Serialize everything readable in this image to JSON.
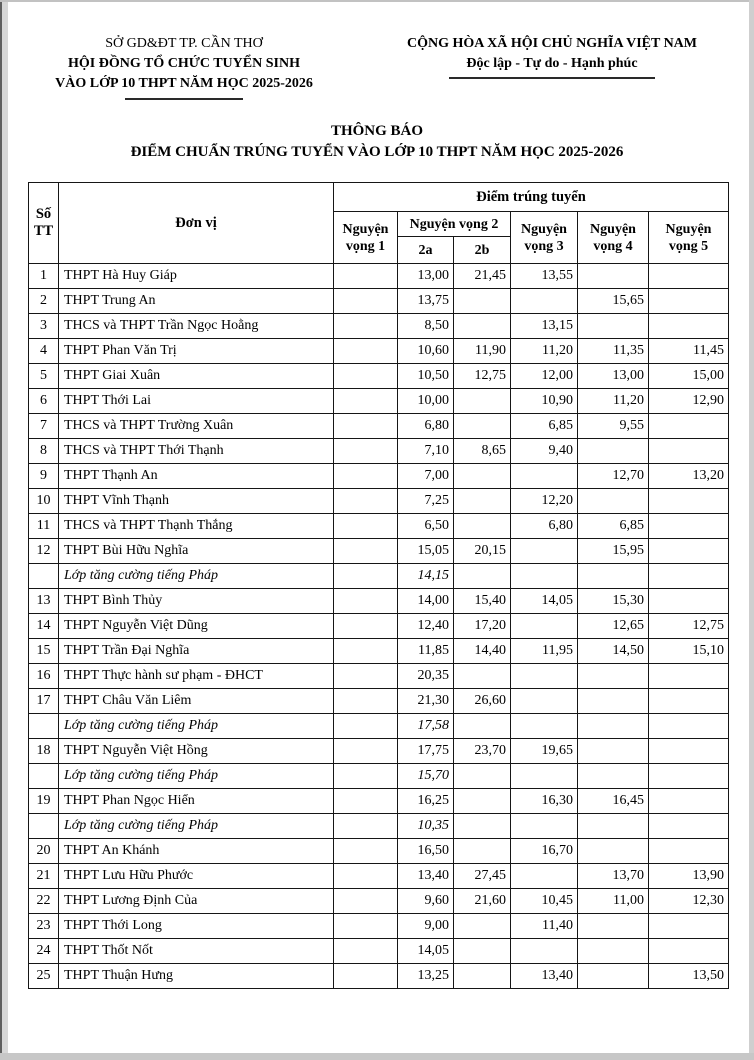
{
  "document": {
    "left_block": {
      "line1": "SỞ GD&ĐT TP. CẦN THƠ",
      "line2": "HỘI ĐỒNG TỔ CHỨC TUYỂN SINH",
      "line3": "VÀO LỚP 10 THPT NĂM HỌC 2025-2026"
    },
    "right_block": {
      "line1": "CỘNG HÒA XÃ HỘI CHỦ NGHĨA VIỆT NAM",
      "line2": "Độc lập - Tự do - Hạnh phúc"
    },
    "title": {
      "line1": "THÔNG BÁO",
      "line2": "ĐIỂM CHUẨN TRÚNG TUYỂN VÀO LỚP 10 THPT NĂM HỌC 2025-2026"
    }
  },
  "table": {
    "headers": {
      "stt": "Số TT",
      "unit": "Đơn vị",
      "group": "Điểm trúng tuyển",
      "nv1": "Nguyện vọng 1",
      "nv2": "Nguyện vọng 2",
      "nv2a": "2a",
      "nv2b": "2b",
      "nv3": "Nguyện vọng 3",
      "nv4": "Nguyện vọng 4",
      "nv5": "Nguyện vọng 5"
    },
    "rows": [
      {
        "stt": "1",
        "unit": "THPT Hà Huy Giáp",
        "nv1": "",
        "nv2a": "13,00",
        "nv2b": "21,45",
        "nv3": "13,55",
        "nv4": "",
        "nv5": "",
        "french": false
      },
      {
        "stt": "2",
        "unit": "THPT Trung An",
        "nv1": "",
        "nv2a": "13,75",
        "nv2b": "",
        "nv3": "",
        "nv4": "15,65",
        "nv5": "",
        "french": false
      },
      {
        "stt": "3",
        "unit": "THCS và THPT Trần Ngọc Hoằng",
        "nv1": "",
        "nv2a": "8,50",
        "nv2b": "",
        "nv3": "13,15",
        "nv4": "",
        "nv5": "",
        "french": false
      },
      {
        "stt": "4",
        "unit": "THPT Phan Văn Trị",
        "nv1": "",
        "nv2a": "10,60",
        "nv2b": "11,90",
        "nv3": "11,20",
        "nv4": "11,35",
        "nv5": "11,45",
        "french": false
      },
      {
        "stt": "5",
        "unit": "THPT Giai Xuân",
        "nv1": "",
        "nv2a": "10,50",
        "nv2b": "12,75",
        "nv3": "12,00",
        "nv4": "13,00",
        "nv5": "15,00",
        "french": false
      },
      {
        "stt": "6",
        "unit": "THPT Thới Lai",
        "nv1": "",
        "nv2a": "10,00",
        "nv2b": "",
        "nv3": "10,90",
        "nv4": "11,20",
        "nv5": "12,90",
        "french": false
      },
      {
        "stt": "7",
        "unit": "THCS và THPT Trường Xuân",
        "nv1": "",
        "nv2a": "6,80",
        "nv2b": "",
        "nv3": "6,85",
        "nv4": "9,55",
        "nv5": "",
        "french": false
      },
      {
        "stt": "8",
        "unit": "THCS và THPT Thới Thạnh",
        "nv1": "",
        "nv2a": "7,10",
        "nv2b": "8,65",
        "nv3": "9,40",
        "nv4": "",
        "nv5": "",
        "french": false
      },
      {
        "stt": "9",
        "unit": "THPT Thạnh An",
        "nv1": "",
        "nv2a": "7,00",
        "nv2b": "",
        "nv3": "",
        "nv4": "12,70",
        "nv5": "13,20",
        "french": false
      },
      {
        "stt": "10",
        "unit": "THPT Vĩnh Thạnh",
        "nv1": "",
        "nv2a": "7,25",
        "nv2b": "",
        "nv3": "12,20",
        "nv4": "",
        "nv5": "",
        "french": false
      },
      {
        "stt": "11",
        "unit": "THCS và THPT Thạnh Thắng",
        "nv1": "",
        "nv2a": "6,50",
        "nv2b": "",
        "nv3": "6,80",
        "nv4": "6,85",
        "nv5": "",
        "french": false
      },
      {
        "stt": "12",
        "unit": "THPT Bùi Hữu Nghĩa",
        "nv1": "",
        "nv2a": "15,05",
        "nv2b": "20,15",
        "nv3": "",
        "nv4": "15,95",
        "nv5": "",
        "french": false
      },
      {
        "stt": "",
        "unit": "Lớp tăng cường tiếng Pháp",
        "nv1": "",
        "nv2a": "14,15",
        "nv2b": "",
        "nv3": "",
        "nv4": "",
        "nv5": "",
        "french": true
      },
      {
        "stt": "13",
        "unit": "THPT Bình Thủy",
        "nv1": "",
        "nv2a": "14,00",
        "nv2b": "15,40",
        "nv3": "14,05",
        "nv4": "15,30",
        "nv5": "",
        "french": false
      },
      {
        "stt": "14",
        "unit": "THPT Nguyễn Việt Dũng",
        "nv1": "",
        "nv2a": "12,40",
        "nv2b": "17,20",
        "nv3": "",
        "nv4": "12,65",
        "nv5": "12,75",
        "french": false
      },
      {
        "stt": "15",
        "unit": "THPT Trần Đại Nghĩa",
        "nv1": "",
        "nv2a": "11,85",
        "nv2b": "14,40",
        "nv3": "11,95",
        "nv4": "14,50",
        "nv5": "15,10",
        "french": false
      },
      {
        "stt": "16",
        "unit": "THPT Thực hành sư phạm - ĐHCT",
        "nv1": "",
        "nv2a": "20,35",
        "nv2b": "",
        "nv3": "",
        "nv4": "",
        "nv5": "",
        "french": false
      },
      {
        "stt": "17",
        "unit": "THPT Châu Văn Liêm",
        "nv1": "",
        "nv2a": "21,30",
        "nv2b": "26,60",
        "nv3": "",
        "nv4": "",
        "nv5": "",
        "french": false
      },
      {
        "stt": "",
        "unit": "Lớp tăng cường tiếng Pháp",
        "nv1": "",
        "nv2a": "17,58",
        "nv2b": "",
        "nv3": "",
        "nv4": "",
        "nv5": "",
        "french": true
      },
      {
        "stt": "18",
        "unit": "THPT Nguyễn Việt Hồng",
        "nv1": "",
        "nv2a": "17,75",
        "nv2b": "23,70",
        "nv3": "19,65",
        "nv4": "",
        "nv5": "",
        "french": false
      },
      {
        "stt": "",
        "unit": "Lớp tăng cường tiếng Pháp",
        "nv1": "",
        "nv2a": "15,70",
        "nv2b": "",
        "nv3": "",
        "nv4": "",
        "nv5": "",
        "french": true
      },
      {
        "stt": "19",
        "unit": "THPT Phan Ngọc Hiển",
        "nv1": "",
        "nv2a": "16,25",
        "nv2b": "",
        "nv3": "16,30",
        "nv4": "16,45",
        "nv5": "",
        "french": false
      },
      {
        "stt": "",
        "unit": "Lớp tăng cường tiếng Pháp",
        "nv1": "",
        "nv2a": "10,35",
        "nv2b": "",
        "nv3": "",
        "nv4": "",
        "nv5": "",
        "french": true
      },
      {
        "stt": "20",
        "unit": "THPT An Khánh",
        "nv1": "",
        "nv2a": "16,50",
        "nv2b": "",
        "nv3": "16,70",
        "nv4": "",
        "nv5": "",
        "french": false
      },
      {
        "stt": "21",
        "unit": "THPT Lưu Hữu Phước",
        "nv1": "",
        "nv2a": "13,40",
        "nv2b": "27,45",
        "nv3": "",
        "nv4": "13,70",
        "nv5": "13,90",
        "french": false
      },
      {
        "stt": "22",
        "unit": "THPT Lương Định Của",
        "nv1": "",
        "nv2a": "9,60",
        "nv2b": "21,60",
        "nv3": "10,45",
        "nv4": "11,00",
        "nv5": "12,30",
        "french": false
      },
      {
        "stt": "23",
        "unit": "THPT Thới Long",
        "nv1": "",
        "nv2a": "9,00",
        "nv2b": "",
        "nv3": "11,40",
        "nv4": "",
        "nv5": "",
        "french": false
      },
      {
        "stt": "24",
        "unit": "THPT Thốt Nốt",
        "nv1": "",
        "nv2a": "14,05",
        "nv2b": "",
        "nv3": "",
        "nv4": "",
        "nv5": "",
        "french": false
      },
      {
        "stt": "25",
        "unit": "THPT Thuận Hưng",
        "nv1": "",
        "nv2a": "13,25",
        "nv2b": "",
        "nv3": "13,40",
        "nv4": "",
        "nv5": "13,50",
        "french": false
      }
    ]
  },
  "colors": {
    "text": "#000000",
    "page": "#ffffff",
    "grid": "#161616",
    "scan_edge": "#d7d7d7"
  }
}
